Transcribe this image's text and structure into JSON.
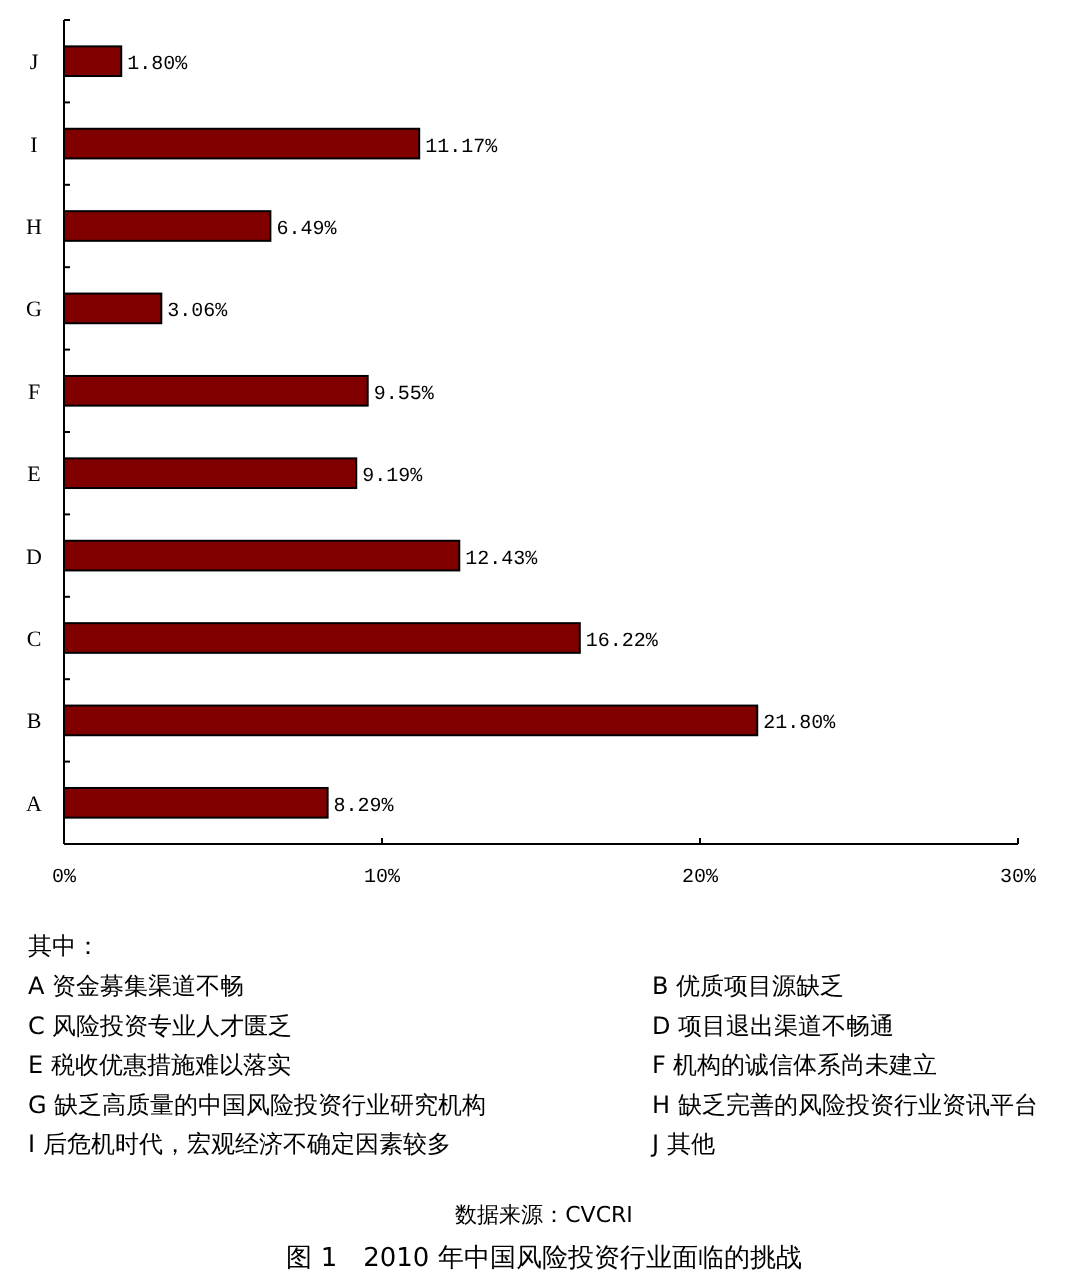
{
  "chart_data": {
    "type": "bar",
    "orientation": "horizontal",
    "title": "图 1　2010 年中国风险投资行业面临的挑战",
    "categories": [
      "J",
      "I",
      "H",
      "G",
      "F",
      "E",
      "D",
      "C",
      "B",
      "A"
    ],
    "values": [
      1.8,
      11.17,
      6.49,
      3.06,
      9.55,
      9.19,
      12.43,
      16.22,
      21.8,
      8.29
    ],
    "value_labels": [
      "1.80%",
      "11.17%",
      "6.49%",
      "3.06%",
      "9.55%",
      "9.19%",
      "12.43%",
      "16.22%",
      "21.80%",
      "8.29%"
    ],
    "color": "#800000",
    "xlim": [
      0,
      30
    ],
    "xticks": [
      {
        "value": 0,
        "label": "0%"
      },
      {
        "value": 10,
        "label": "10%"
      },
      {
        "value": 20,
        "label": "20%"
      },
      {
        "value": 30,
        "label": "30%"
      }
    ],
    "annotations": [
      "其中：",
      "A 资金募集渠道不畅",
      "B 优质项目源缺乏",
      "C 风险投资专业人才匮乏",
      "D 项目退出渠道不畅通",
      "E 税收优惠措施难以落实",
      "F 机构的诚信体系尚未建立",
      "G 缺乏高质量的中国风险投资行业研究机构",
      "H 缺乏完善的风险投资行业资讯平台",
      "I 后危机时代，宏观经济不确定因素较多",
      "J 其他",
      "数据来源：CVCRI"
    ]
  }
}
